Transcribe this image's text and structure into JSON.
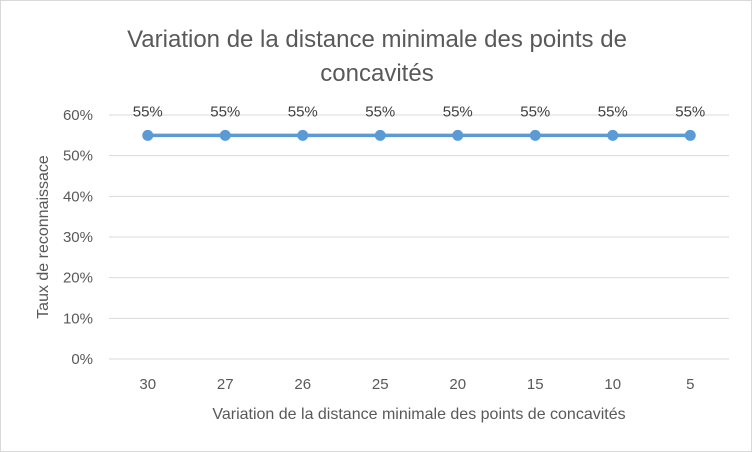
{
  "chart_data": {
    "type": "line",
    "title_line1": "Variation de la distance minimale des points de",
    "title_line2": "concavités",
    "xlabel": "Variation de la distance minimale des points de concavités",
    "ylabel": "Taux de reconnaissace",
    "categories": [
      "30",
      "27",
      "26",
      "25",
      "20",
      "15",
      "10",
      "5"
    ],
    "series": [
      {
        "values": [
          55,
          55,
          55,
          55,
          55,
          55,
          55,
          55
        ],
        "color": "#5b9bd5"
      }
    ],
    "data_labels": [
      "55%",
      "55%",
      "55%",
      "55%",
      "55%",
      "55%",
      "55%",
      "55%"
    ],
    "y_ticks": [
      "0%",
      "10%",
      "20%",
      "30%",
      "40%",
      "50%",
      "60%"
    ],
    "ylim": [
      0,
      60
    ],
    "grid": true,
    "legend": "none",
    "colors": {
      "gridline": "#d9d9d9",
      "text": "#595959"
    }
  }
}
